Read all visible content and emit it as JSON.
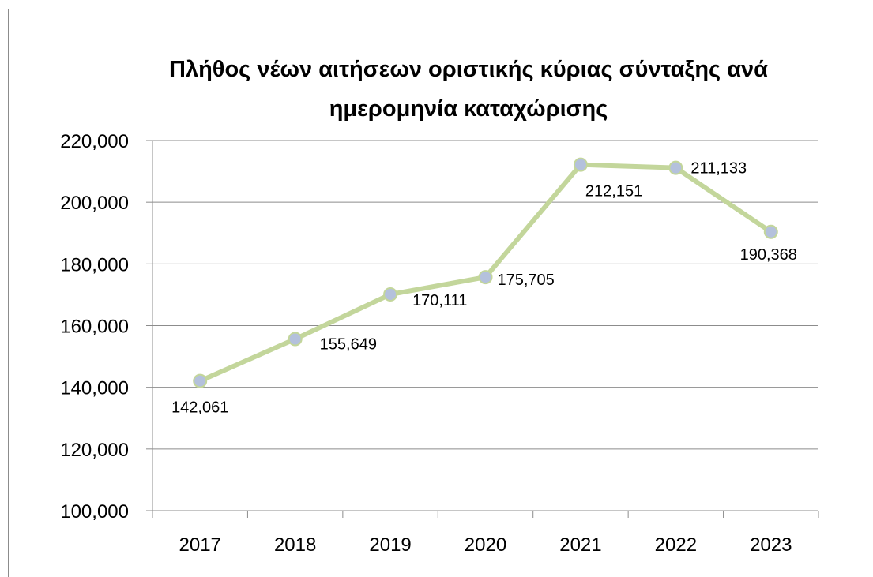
{
  "chart_data": {
    "type": "line",
    "title_lines": [
      "Πλήθος νέων αιτήσεων οριστικής κύριας σύνταξης ανά",
      "ημερομηνία καταχώρισης"
    ],
    "categories": [
      "2017",
      "2018",
      "2019",
      "2020",
      "2021",
      "2022",
      "2023"
    ],
    "series": [
      {
        "values": [
          142061,
          155649,
          170111,
          175705,
          212151,
          211133,
          190368
        ],
        "labels": [
          "142,061",
          "155,649",
          "170,111",
          "175,705",
          "212,151",
          "211,133",
          "190,368"
        ],
        "line_color": "#c3d69b",
        "marker_color": "#b4c1dc"
      }
    ],
    "y_ticks": [
      "100,000",
      "120,000",
      "140,000",
      "160,000",
      "180,000",
      "200,000",
      "220,000"
    ],
    "ylim": [
      100000,
      220000
    ],
    "grid": true,
    "legend": "none",
    "gridline_color": "#8c8c8c",
    "axis_color": "#8c8c8c"
  }
}
